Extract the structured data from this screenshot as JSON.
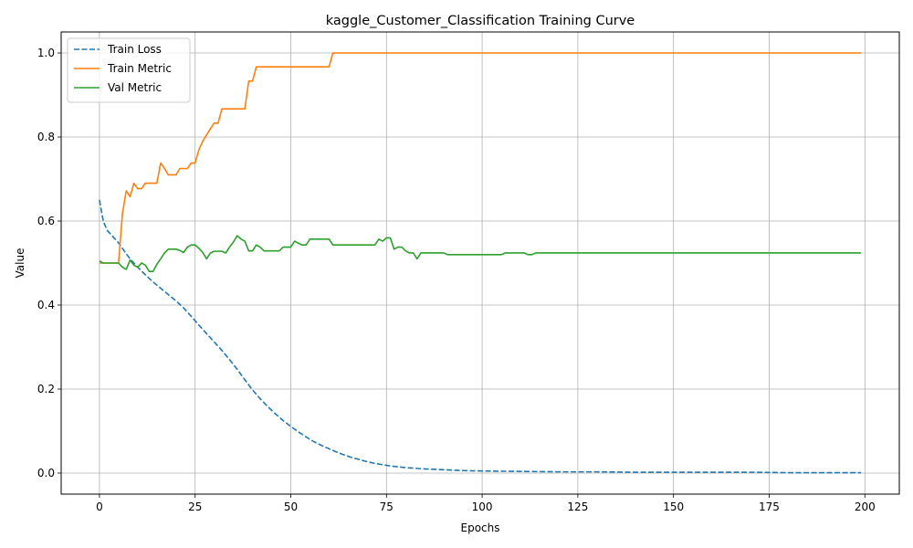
{
  "chart_data": {
    "type": "line",
    "title": "kaggle_Customer_Classification Training Curve",
    "xlabel": "Epochs",
    "ylabel": "Value",
    "xlim": [
      -10,
      209
    ],
    "ylim": [
      -0.05,
      1.05
    ],
    "xticks": [
      0,
      25,
      50,
      75,
      100,
      125,
      150,
      175,
      200
    ],
    "yticks": [
      0.0,
      0.2,
      0.4,
      0.6,
      0.8,
      1.0
    ],
    "grid": true,
    "legend_position": "top-left",
    "series": [
      {
        "name": "Train Loss",
        "color": "#1f77b4",
        "style": "dashed",
        "x": [
          0,
          1,
          2,
          3,
          4,
          5,
          6,
          7,
          8,
          9,
          10,
          12,
          14,
          16,
          18,
          20,
          22,
          24,
          26,
          28,
          30,
          32,
          34,
          36,
          38,
          40,
          42,
          44,
          46,
          48,
          50,
          52,
          54,
          56,
          58,
          60,
          62,
          64,
          66,
          68,
          70,
          72,
          74,
          76,
          78,
          80,
          85,
          90,
          95,
          100,
          110,
          120,
          130,
          140,
          150,
          160,
          170,
          180,
          190,
          199
        ],
        "y": [
          0.65,
          0.6,
          0.578,
          0.568,
          0.558,
          0.548,
          0.535,
          0.522,
          0.51,
          0.5,
          0.49,
          0.472,
          0.455,
          0.44,
          0.425,
          0.41,
          0.393,
          0.373,
          0.352,
          0.332,
          0.312,
          0.292,
          0.27,
          0.247,
          0.222,
          0.198,
          0.177,
          0.158,
          0.141,
          0.125,
          0.111,
          0.098,
          0.086,
          0.075,
          0.066,
          0.058,
          0.05,
          0.043,
          0.037,
          0.032,
          0.027,
          0.023,
          0.02,
          0.017,
          0.015,
          0.013,
          0.01,
          0.008,
          0.006,
          0.005,
          0.004,
          0.003,
          0.003,
          0.002,
          0.002,
          0.002,
          0.002,
          0.001,
          0.001,
          0.001
        ]
      },
      {
        "name": "Train Metric",
        "color": "#ff7f0e",
        "style": "solid",
        "x": [
          0,
          1,
          2,
          3,
          4,
          5,
          6,
          7,
          8,
          9,
          10,
          11,
          12,
          13,
          14,
          15,
          16,
          17,
          18,
          19,
          20,
          21,
          22,
          23,
          24,
          25,
          26,
          27,
          28,
          29,
          30,
          31,
          32,
          33,
          34,
          35,
          36,
          37,
          38,
          39,
          40,
          41,
          42,
          50,
          55,
          60,
          61,
          70,
          80,
          100,
          150,
          199
        ],
        "y": [
          0.5,
          0.5,
          0.5,
          0.5,
          0.5,
          0.5,
          0.617,
          0.672,
          0.658,
          0.69,
          0.677,
          0.677,
          0.69,
          0.69,
          0.69,
          0.69,
          0.738,
          0.725,
          0.71,
          0.71,
          0.71,
          0.725,
          0.725,
          0.725,
          0.738,
          0.738,
          0.77,
          0.79,
          0.805,
          0.82,
          0.833,
          0.833,
          0.867,
          0.867,
          0.867,
          0.867,
          0.867,
          0.867,
          0.867,
          0.933,
          0.933,
          0.967,
          0.967,
          0.967,
          0.967,
          0.967,
          1.0,
          1.0,
          1.0,
          1.0,
          1.0,
          1.0
        ]
      },
      {
        "name": "Val Metric",
        "color": "#2ca02c",
        "style": "solid",
        "x": [
          0,
          1,
          2,
          3,
          4,
          5,
          6,
          7,
          8,
          9,
          10,
          11,
          12,
          13,
          14,
          15,
          16,
          17,
          18,
          19,
          20,
          21,
          22,
          23,
          24,
          25,
          26,
          27,
          28,
          29,
          30,
          31,
          32,
          33,
          34,
          35,
          36,
          37,
          38,
          39,
          40,
          41,
          42,
          43,
          44,
          45,
          46,
          47,
          48,
          49,
          50,
          51,
          52,
          53,
          54,
          55,
          56,
          57,
          58,
          59,
          60,
          61,
          62,
          65,
          68,
          70,
          72,
          73,
          74,
          75,
          76,
          77,
          78,
          79,
          80,
          81,
          82,
          83,
          84,
          85,
          86,
          87,
          88,
          89,
          90,
          91,
          92,
          95,
          100,
          105,
          106,
          110,
          111,
          112,
          113,
          114,
          120,
          150,
          199
        ],
        "y": [
          0.505,
          0.5,
          0.5,
          0.5,
          0.5,
          0.5,
          0.49,
          0.485,
          0.507,
          0.495,
          0.49,
          0.5,
          0.495,
          0.48,
          0.48,
          0.497,
          0.51,
          0.524,
          0.533,
          0.533,
          0.533,
          0.53,
          0.525,
          0.538,
          0.543,
          0.543,
          0.535,
          0.525,
          0.51,
          0.524,
          0.528,
          0.528,
          0.528,
          0.524,
          0.538,
          0.55,
          0.565,
          0.557,
          0.552,
          0.529,
          0.529,
          0.543,
          0.538,
          0.529,
          0.529,
          0.529,
          0.529,
          0.529,
          0.538,
          0.538,
          0.538,
          0.552,
          0.547,
          0.543,
          0.543,
          0.557,
          0.557,
          0.557,
          0.557,
          0.557,
          0.557,
          0.543,
          0.543,
          0.543,
          0.543,
          0.543,
          0.543,
          0.557,
          0.552,
          0.56,
          0.56,
          0.533,
          0.538,
          0.538,
          0.529,
          0.524,
          0.524,
          0.51,
          0.524,
          0.524,
          0.524,
          0.524,
          0.524,
          0.524,
          0.524,
          0.52,
          0.52,
          0.52,
          0.52,
          0.52,
          0.524,
          0.524,
          0.524,
          0.52,
          0.52,
          0.524,
          0.524,
          0.524,
          0.524
        ]
      }
    ]
  }
}
